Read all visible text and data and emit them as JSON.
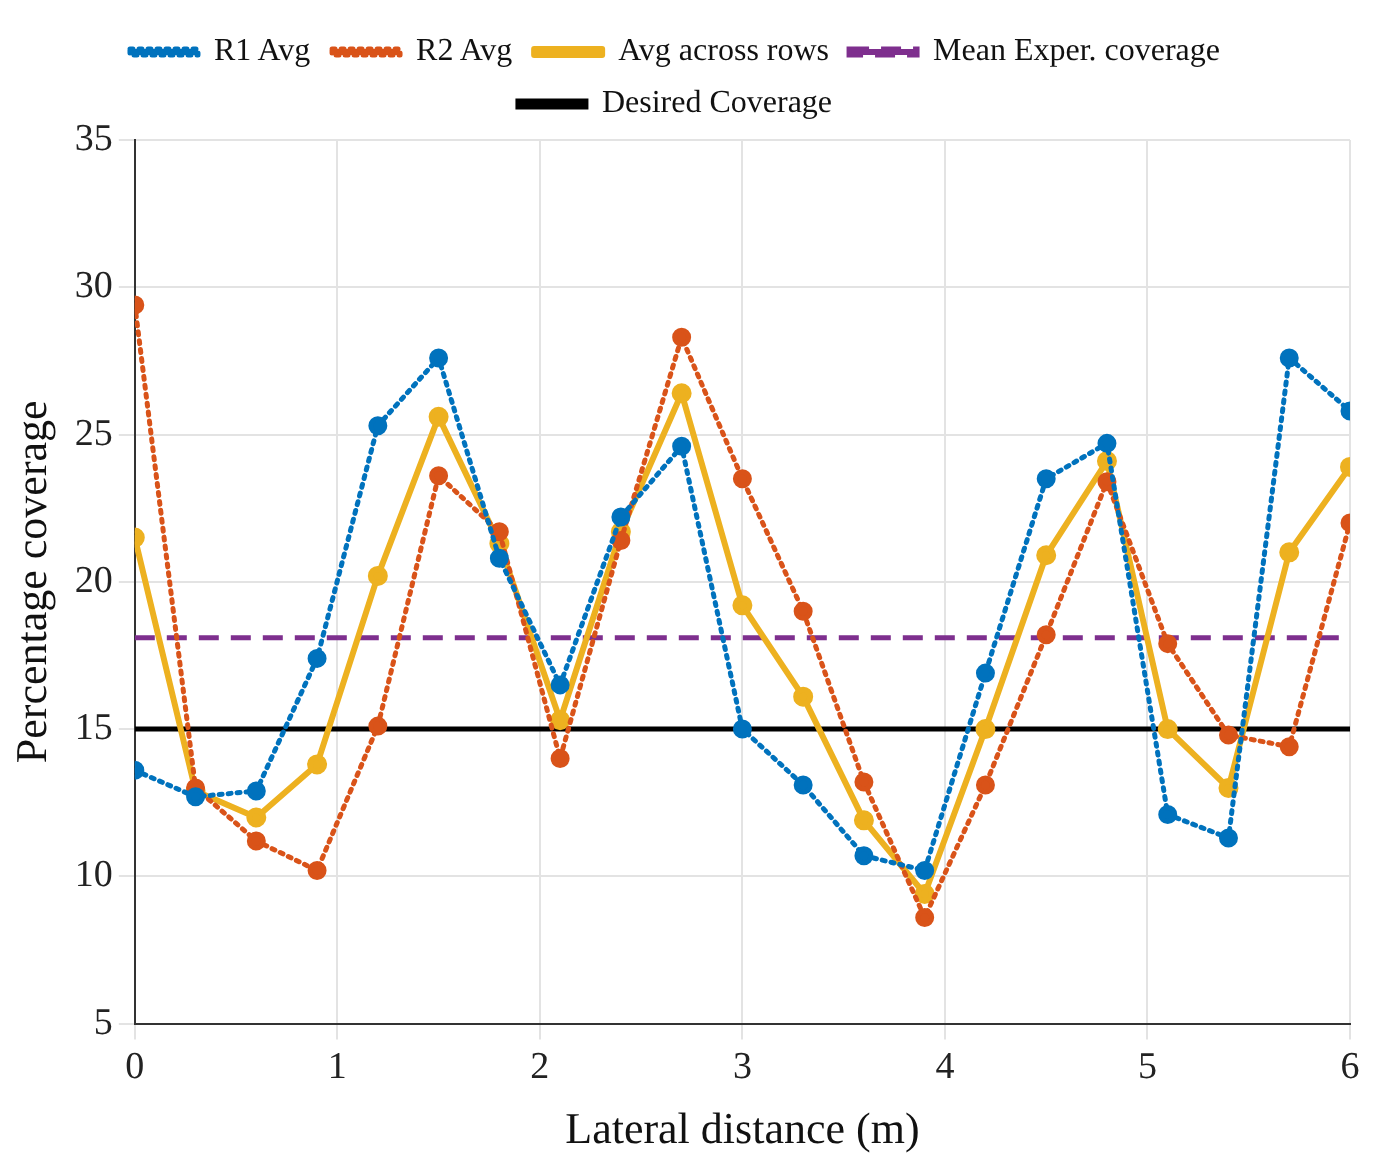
{
  "chart_data": {
    "type": "line",
    "xlabel": "Lateral distance (m)",
    "ylabel": "Percentage coverage",
    "x": [
      0,
      0.3,
      0.6,
      0.9,
      1.2,
      1.5,
      1.8,
      2.1,
      2.4,
      2.7,
      3.0,
      3.3,
      3.6,
      3.9,
      4.2,
      4.5,
      4.8,
      5.1,
      5.4,
      5.7,
      6.0
    ],
    "series": [
      {
        "name": "R1 Avg",
        "color": "#0072bd",
        "line_style": "dotted",
        "values": [
          13.6,
          12.7,
          12.9,
          17.4,
          25.3,
          27.6,
          20.8,
          16.5,
          22.2,
          24.6,
          15.0,
          13.1,
          10.7,
          10.2,
          16.9,
          23.5,
          24.7,
          12.1,
          11.3,
          27.6,
          25.8
        ]
      },
      {
        "name": "R2 Avg",
        "color": "#d95319",
        "line_style": "dotted",
        "values": [
          29.4,
          13.0,
          11.2,
          10.2,
          15.1,
          23.6,
          21.7,
          14.0,
          21.4,
          28.3,
          23.5,
          19.0,
          13.2,
          8.6,
          13.1,
          18.2,
          23.4,
          17.9,
          14.8,
          14.4,
          22.0
        ]
      },
      {
        "name": "Avg across rows",
        "color": "#edb120",
        "line_style": "solid",
        "values": [
          21.5,
          12.9,
          12.0,
          13.8,
          20.2,
          25.6,
          21.3,
          15.3,
          21.7,
          26.4,
          19.2,
          16.1,
          11.9,
          9.4,
          15.0,
          20.9,
          24.1,
          15.0,
          13.0,
          21.0,
          23.9
        ]
      }
    ],
    "ref_lines": [
      {
        "axis": "y",
        "value": 18.1,
        "label": "Mean Exper. coverage",
        "color": "#7e2f8e",
        "line_style": "dashed"
      },
      {
        "axis": "y",
        "value": 15,
        "label": "Desired Coverage",
        "color": "#000000",
        "line_style": "solid"
      }
    ],
    "xlim": [
      0,
      6
    ],
    "xticks": [
      0,
      1,
      2,
      3,
      4,
      5,
      6
    ],
    "ylim": [
      5,
      35
    ],
    "yticks": [
      5,
      10,
      15,
      20,
      25,
      30,
      35
    ],
    "grid": true,
    "legend": "top",
    "marker": "circle"
  }
}
